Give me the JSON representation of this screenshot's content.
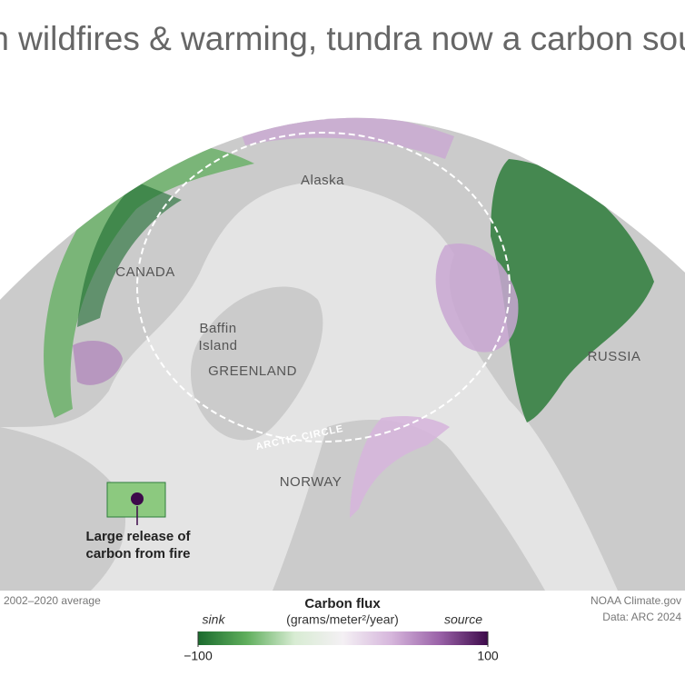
{
  "title": "With wildfires & warming, tundra now a carbon source",
  "places": {
    "alaska": "Alaska",
    "canada": "CANADA",
    "baffin": [
      "Baffin",
      "Island"
    ],
    "greenland": "GREENLAND",
    "russia": "RUSSIA",
    "norway": "NORWAY",
    "arctic_circle": "ARCTIC CIRCLE"
  },
  "annotation": [
    "Large release of",
    "carbon from fire"
  ],
  "period": "2002–2020 average",
  "legend": {
    "title": "Carbon flux",
    "units": "(grams/meter²/year)",
    "low_label": "sink",
    "high_label": "source",
    "lim": [
      -100,
      100
    ],
    "ticks": [
      {
        "value": -100,
        "label": "−100"
      },
      100
    ],
    "colors": [
      "#1b6b2e",
      "#5fae5c",
      "#d8ecd3",
      "#f4f0f4",
      "#d6b6dc",
      "#9a62a8",
      "#3d0a4a"
    ]
  },
  "credits": [
    "NOAA Climate.gov",
    "Data: ARC 2024"
  ]
}
